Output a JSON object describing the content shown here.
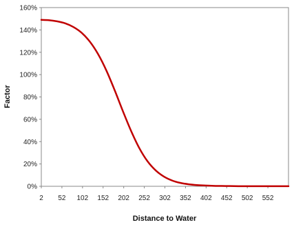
{
  "chart_data": {
    "type": "line",
    "title": "",
    "xlabel": "Distance to Water",
    "ylabel": "Factor",
    "x_ticks": [
      2,
      52,
      102,
      152,
      202,
      252,
      302,
      352,
      402,
      452,
      502,
      552
    ],
    "xlim": [
      2,
      602
    ],
    "y_ticks": [
      "0%",
      "20%",
      "40%",
      "60%",
      "80%",
      "100%",
      "120%",
      "140%",
      "160%"
    ],
    "ylim": [
      0,
      160
    ],
    "grid": false,
    "legend": "none",
    "line_color": "#C00000",
    "series": [
      {
        "x": [
          2,
          20,
          40,
          60,
          80,
          100,
          120,
          140,
          160,
          180,
          200,
          220,
          240,
          260,
          280,
          300,
          320,
          340,
          360,
          380,
          400,
          420,
          440,
          460,
          480,
          500,
          520,
          540,
          560,
          580,
          602
        ],
        "values": [
          149,
          148.7,
          147.7,
          145.9,
          142.6,
          137.4,
          129.4,
          118.2,
          103.6,
          86.1,
          67.3,
          49.5,
          34.1,
          22.3,
          14.1,
          8.6,
          5.1,
          3.0,
          1.8,
          1.1,
          0.7,
          0.4,
          0.3,
          0.2,
          0.1,
          0.1,
          0.1,
          0.1,
          0.1,
          0.1,
          0.1
        ]
      }
    ]
  }
}
